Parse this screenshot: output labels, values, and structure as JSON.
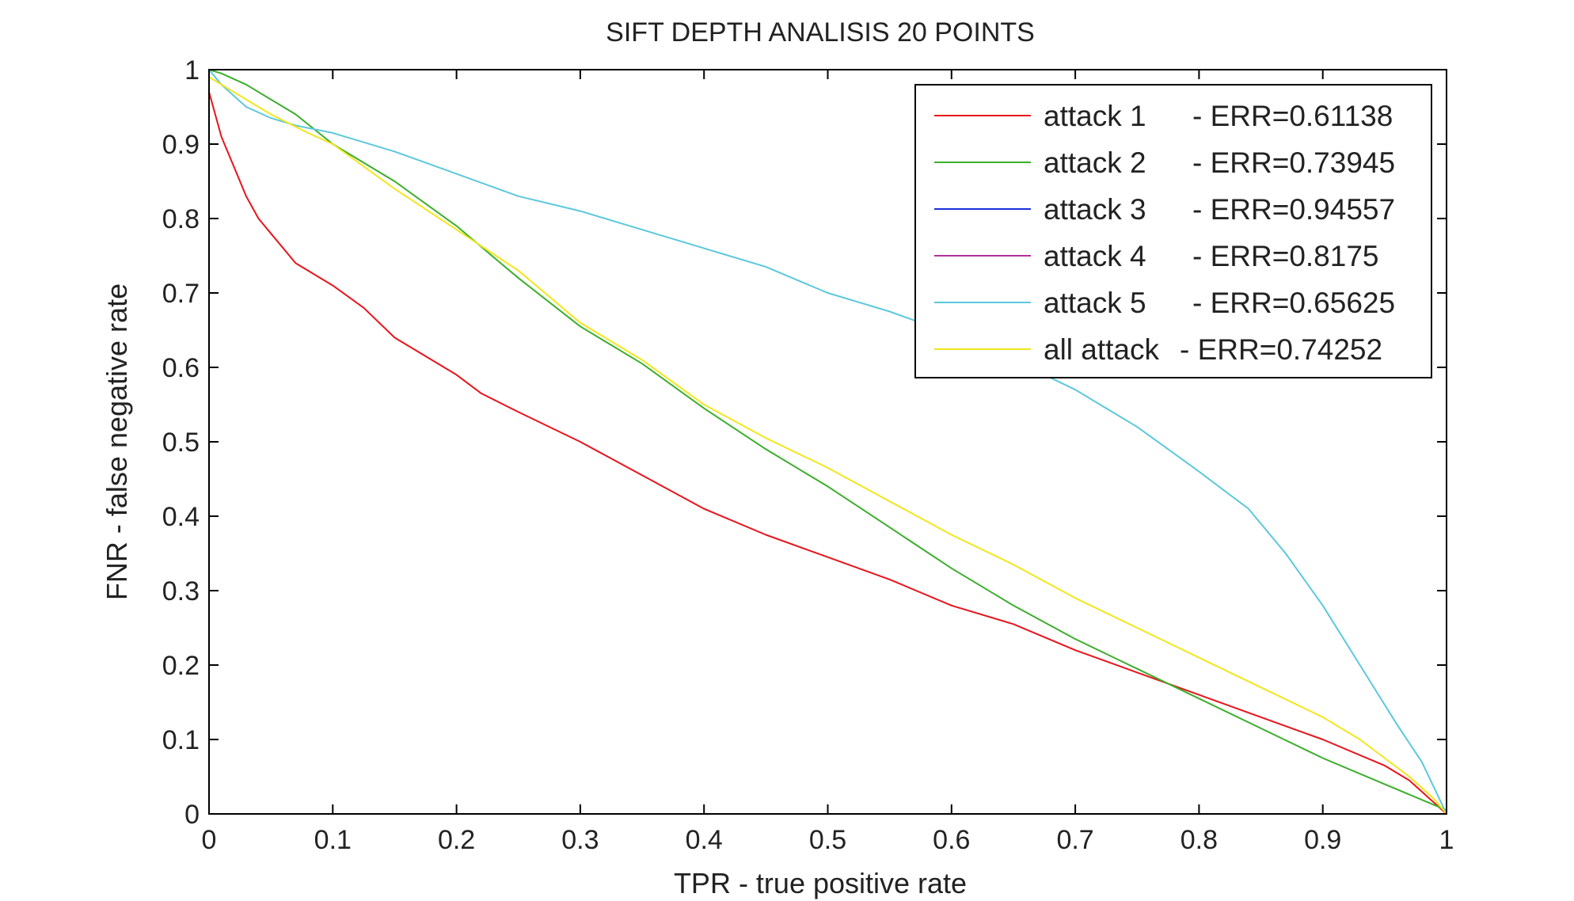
{
  "chart_data": {
    "type": "line",
    "title": "SIFT DEPTH ANALISIS 20 POINTS",
    "xlabel": "TPR - true positive rate",
    "ylabel": "FNR - false negative rate",
    "xlim": [
      0,
      1
    ],
    "ylim": [
      0,
      1
    ],
    "xticks": [
      0,
      0.1,
      0.2,
      0.3,
      0.4,
      0.5,
      0.6,
      0.7,
      0.8,
      0.9,
      1
    ],
    "yticks": [
      0,
      0.1,
      0.2,
      0.3,
      0.4,
      0.5,
      0.6,
      0.7,
      0.8,
      0.9,
      1
    ],
    "xtick_labels": [
      "0",
      "0.1",
      "0.2",
      "0.3",
      "0.4",
      "0.5",
      "0.6",
      "0.7",
      "0.8",
      "0.9",
      "1"
    ],
    "ytick_labels": [
      "0",
      "0.1",
      "0.2",
      "0.3",
      "0.4",
      "0.5",
      "0.6",
      "0.7",
      "0.8",
      "0.9",
      "1"
    ],
    "grid": false,
    "legend_position": "top-right",
    "series": [
      {
        "name": "attack 1",
        "err_label": "- ERR=0.61138",
        "color": "#e8141c",
        "x": [
          0,
          0.005,
          0.01,
          0.02,
          0.03,
          0.04,
          0.05,
          0.07,
          0.1,
          0.125,
          0.15,
          0.2,
          0.22,
          0.25,
          0.3,
          0.35,
          0.4,
          0.45,
          0.5,
          0.55,
          0.6,
          0.65,
          0.7,
          0.75,
          0.8,
          0.85,
          0.9,
          0.95,
          0.97,
          1.0
        ],
        "y": [
          0.97,
          0.94,
          0.91,
          0.87,
          0.83,
          0.8,
          0.78,
          0.74,
          0.71,
          0.68,
          0.64,
          0.59,
          0.565,
          0.54,
          0.5,
          0.455,
          0.41,
          0.375,
          0.345,
          0.315,
          0.28,
          0.255,
          0.22,
          0.19,
          0.16,
          0.13,
          0.1,
          0.065,
          0.045,
          0.0
        ]
      },
      {
        "name": "attack 2",
        "err_label": "- ERR=0.73945",
        "color": "#3cae2c",
        "x": [
          0,
          0.01,
          0.03,
          0.05,
          0.07,
          0.1,
          0.15,
          0.2,
          0.25,
          0.3,
          0.35,
          0.4,
          0.45,
          0.5,
          0.55,
          0.6,
          0.65,
          0.7,
          0.75,
          0.8,
          0.85,
          0.9,
          0.95,
          1.0
        ],
        "y": [
          1.0,
          0.995,
          0.98,
          0.96,
          0.94,
          0.9,
          0.85,
          0.79,
          0.72,
          0.655,
          0.605,
          0.545,
          0.49,
          0.44,
          0.385,
          0.33,
          0.28,
          0.235,
          0.195,
          0.155,
          0.115,
          0.075,
          0.04,
          0.005
        ]
      },
      {
        "name": "attack 3",
        "err_label": "- ERR=0.94557",
        "color": "#1a2fd6",
        "x": [],
        "y": []
      },
      {
        "name": "attack 4",
        "err_label": "- ERR=0.8175",
        "color": "#b0309c",
        "x": [],
        "y": []
      },
      {
        "name": "attack 5",
        "err_label": "- ERR=0.65625",
        "color": "#5cc8dc",
        "x": [
          0,
          0.01,
          0.03,
          0.05,
          0.07,
          0.1,
          0.15,
          0.2,
          0.25,
          0.3,
          0.35,
          0.4,
          0.45,
          0.5,
          0.55,
          0.6,
          0.65,
          0.7,
          0.75,
          0.8,
          0.84,
          0.87,
          0.9,
          0.93,
          0.96,
          0.98,
          0.99,
          1.0
        ],
        "y": [
          1.0,
          0.98,
          0.95,
          0.935,
          0.925,
          0.915,
          0.89,
          0.86,
          0.83,
          0.81,
          0.785,
          0.76,
          0.735,
          0.7,
          0.675,
          0.645,
          0.61,
          0.57,
          0.52,
          0.46,
          0.41,
          0.35,
          0.28,
          0.2,
          0.12,
          0.07,
          0.035,
          0.0
        ]
      },
      {
        "name": "all attack",
        "err_label": "- ERR=0.74252",
        "color": "#f2e61c",
        "x": [
          0,
          0.02,
          0.05,
          0.08,
          0.1,
          0.15,
          0.2,
          0.25,
          0.3,
          0.35,
          0.4,
          0.45,
          0.5,
          0.55,
          0.6,
          0.65,
          0.7,
          0.75,
          0.8,
          0.85,
          0.9,
          0.93,
          0.95,
          0.97,
          0.99,
          1.0
        ],
        "y": [
          0.99,
          0.97,
          0.94,
          0.915,
          0.9,
          0.84,
          0.785,
          0.73,
          0.66,
          0.61,
          0.55,
          0.505,
          0.465,
          0.42,
          0.375,
          0.335,
          0.29,
          0.25,
          0.21,
          0.17,
          0.13,
          0.1,
          0.075,
          0.05,
          0.02,
          0.0
        ]
      }
    ]
  }
}
